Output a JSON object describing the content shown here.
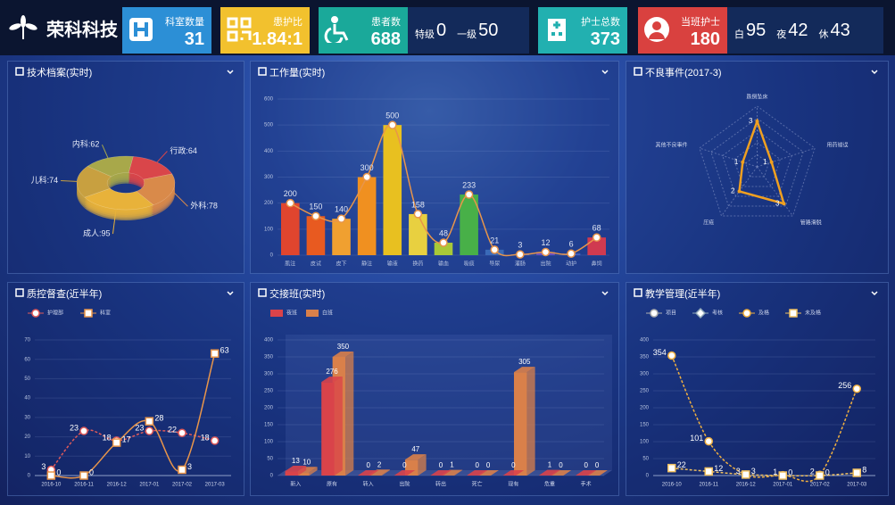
{
  "header": {
    "brand": "荣科科技",
    "cards": [
      {
        "label": "科室数量",
        "value": 31
      },
      {
        "label": "患护比",
        "value": "1.84:1"
      },
      {
        "label": "患者数",
        "value": 688,
        "subs": [
          {
            "label": "特级",
            "value": 0
          },
          {
            "label": "一级",
            "value": 50
          }
        ]
      },
      {
        "label": "护士总数",
        "value": 373
      },
      {
        "label": "当班护士",
        "value": 180,
        "subs": [
          {
            "label": "白",
            "value": 95
          },
          {
            "label": "夜",
            "value": 42
          },
          {
            "label": "休",
            "value": 43
          }
        ]
      }
    ]
  },
  "chart_data": [
    {
      "type": "pie",
      "title": "技术档案(实时)",
      "categories": [
        "行政",
        "外科",
        "成人",
        "儿科",
        "内科"
      ],
      "values": [
        64,
        78,
        95,
        74,
        62
      ],
      "value_labels": [
        "行政:64",
        "外科:78",
        "成人:95",
        "儿科:74",
        "内科:62"
      ],
      "colors": [
        "#d9464a",
        "#d98a4a",
        "#e8b23a",
        "#c8a040",
        "#a8a84a"
      ]
    },
    {
      "type": "bar",
      "title": "工作量(实时)",
      "categories": [
        "肌注",
        "皮试",
        "皮下",
        "静注",
        "输液",
        "换药",
        "输血",
        "吸痰",
        "导尿",
        "灌肠",
        "出院",
        "动护",
        "鼻饲"
      ],
      "values": [
        200,
        150,
        140,
        300,
        500,
        158,
        48,
        233,
        21,
        3,
        12,
        6,
        68
      ],
      "colors": [
        "#e0452e",
        "#e85a20",
        "#f0a030",
        "#f09020",
        "#e8c020",
        "#e8d040",
        "#a8c838",
        "#48b048",
        "#3a6ab8",
        "#4a70c8",
        "#6a50c0",
        "#4060c0",
        "#d03a50"
      ],
      "line_color": "#e8954a",
      "ylim": [
        0,
        600
      ],
      "yticks": [
        0,
        100,
        200,
        300,
        400,
        500,
        600
      ]
    },
    {
      "type": "radar",
      "title": "不良事件(2017-3)",
      "indicators": [
        "跌倒坠床",
        "用药错误",
        "管路滑脱",
        "压疮",
        "其他不良事件"
      ],
      "values": [
        3,
        1,
        3,
        2,
        1
      ],
      "rlim": [
        0,
        4
      ],
      "color": "#f0a020"
    },
    {
      "type": "line",
      "title": "质控督查(近半年)",
      "x": [
        "2016-10",
        "2016-11",
        "2016-12",
        "2017-01",
        "2017-02",
        "2017-03"
      ],
      "series": [
        {
          "name": "护理部",
          "color": "#e05a5a",
          "marker": "circle",
          "dashed": true,
          "values": [
            3,
            23,
            18,
            23,
            22,
            18
          ]
        },
        {
          "name": "科室",
          "color": "#e8954a",
          "marker": "square",
          "dashed": false,
          "values": [
            0,
            0,
            17,
            28,
            3,
            63
          ]
        }
      ],
      "ylim": [
        0,
        70
      ],
      "yticks": [
        0,
        10,
        20,
        30,
        40,
        50,
        60,
        70
      ]
    },
    {
      "type": "bar3d",
      "title": "交接班(实时)",
      "categories": [
        "新入",
        "原有",
        "转入",
        "出院",
        "转出",
        "死亡",
        "现有",
        "危重",
        "手术"
      ],
      "series": [
        {
          "name": "夜班",
          "color": "#d9434a",
          "values": [
            13,
            276,
            0,
            0,
            0,
            0,
            0,
            1,
            0
          ]
        },
        {
          "name": "白班",
          "color": "#d9804a",
          "values": [
            10,
            350,
            2,
            47,
            1,
            0,
            305,
            0,
            0
          ]
        }
      ],
      "ylim": [
        0,
        400
      ],
      "yticks": [
        0,
        50,
        100,
        150,
        200,
        250,
        300,
        350,
        400
      ]
    },
    {
      "type": "line",
      "title": "教学管理(近半年)",
      "x": [
        "2016-10",
        "2016-11",
        "2016-12",
        "2017-01",
        "2017-02",
        "2017-03"
      ],
      "series": [
        {
          "name": "项目",
          "color": "#b0b0b0",
          "marker": "circle",
          "dashed": false,
          "values": [
            null,
            null,
            null,
            null,
            null,
            null
          ]
        },
        {
          "name": "考核",
          "color": "#90a8b8",
          "marker": "diamond",
          "dashed": false,
          "values": [
            null,
            null,
            null,
            null,
            null,
            null
          ]
        },
        {
          "name": "及格",
          "color": "#f0b040",
          "marker": "circle",
          "dashed": true,
          "values": [
            354,
            101,
            3,
            1,
            2,
            256
          ]
        },
        {
          "name": "未及格",
          "color": "#f0c060",
          "marker": "square",
          "dashed": true,
          "values": [
            22,
            12,
            3,
            0,
            0,
            8
          ]
        }
      ],
      "ylim": [
        0,
        400
      ],
      "yticks": [
        0,
        50,
        100,
        150,
        200,
        250,
        300,
        350,
        400
      ]
    }
  ]
}
